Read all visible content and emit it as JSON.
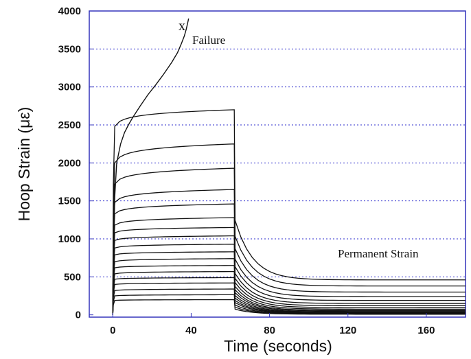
{
  "chart_data": {
    "type": "line",
    "xlabel": "Time (seconds)",
    "ylabel": "Hoop Strain (με)",
    "xlim": [
      -12,
      180
    ],
    "ylim": [
      -30,
      4000
    ],
    "xticks": [
      0,
      40,
      80,
      120,
      160
    ],
    "yticks": [
      0,
      500,
      1000,
      1500,
      2000,
      2500,
      3000,
      3500,
      4000
    ],
    "xtick_labels": [
      "0",
      "40",
      "80",
      "120",
      "160"
    ],
    "ytick_labels": [
      "0",
      "500",
      "1000",
      "1500",
      "2000",
      "2500",
      "3000",
      "3500",
      "4000"
    ],
    "grid": "horizontal dotted",
    "line_color": "#111111",
    "grid_color": "#2b2bcc",
    "frame_color": "#3333bb",
    "unload_time": 62,
    "failure_curve": {
      "x": [
        0,
        0.5,
        1,
        2,
        4,
        6,
        8,
        10,
        14,
        18,
        22,
        26,
        30,
        33,
        35,
        36.5,
        37.5,
        38.2,
        38.7
      ],
      "y": [
        0,
        1000,
        1550,
        2000,
        2250,
        2400,
        2500,
        2590,
        2750,
        2900,
        3030,
        3170,
        3320,
        3450,
        3570,
        3670,
        3760,
        3840,
        3900
      ]
    },
    "series": [
      {
        "load_strain": 2480,
        "peak_strain": 2700,
        "permanent_strain": 460
      },
      {
        "load_strain": 2000,
        "peak_strain": 2250,
        "permanent_strain": 380
      },
      {
        "load_strain": 1720,
        "peak_strain": 1930,
        "permanent_strain": 300
      },
      {
        "load_strain": 1480,
        "peak_strain": 1650,
        "permanent_strain": 240
      },
      {
        "load_strain": 1330,
        "peak_strain": 1460,
        "permanent_strain": 190
      },
      {
        "load_strain": 1180,
        "peak_strain": 1280,
        "permanent_strain": 150
      },
      {
        "load_strain": 1080,
        "peak_strain": 1150,
        "permanent_strain": 120
      },
      {
        "load_strain": 980,
        "peak_strain": 1040,
        "permanent_strain": 95
      },
      {
        "load_strain": 880,
        "peak_strain": 930,
        "permanent_strain": 75
      },
      {
        "load_strain": 790,
        "peak_strain": 830,
        "permanent_strain": 60
      },
      {
        "load_strain": 700,
        "peak_strain": 740,
        "permanent_strain": 50
      },
      {
        "load_strain": 620,
        "peak_strain": 650,
        "permanent_strain": 40
      },
      {
        "load_strain": 540,
        "peak_strain": 570,
        "permanent_strain": 33
      },
      {
        "load_strain": 470,
        "peak_strain": 490,
        "permanent_strain": 27
      },
      {
        "load_strain": 400,
        "peak_strain": 420,
        "permanent_strain": 22
      },
      {
        "load_strain": 320,
        "peak_strain": 340,
        "permanent_strain": 16
      },
      {
        "load_strain": 250,
        "peak_strain": 265,
        "permanent_strain": 12
      },
      {
        "load_strain": 190,
        "peak_strain": 200,
        "permanent_strain": 8
      }
    ],
    "annotations": {
      "failure_marker": "x",
      "failure_label": "Failure",
      "permanent_label": "Permanent Strain"
    }
  }
}
